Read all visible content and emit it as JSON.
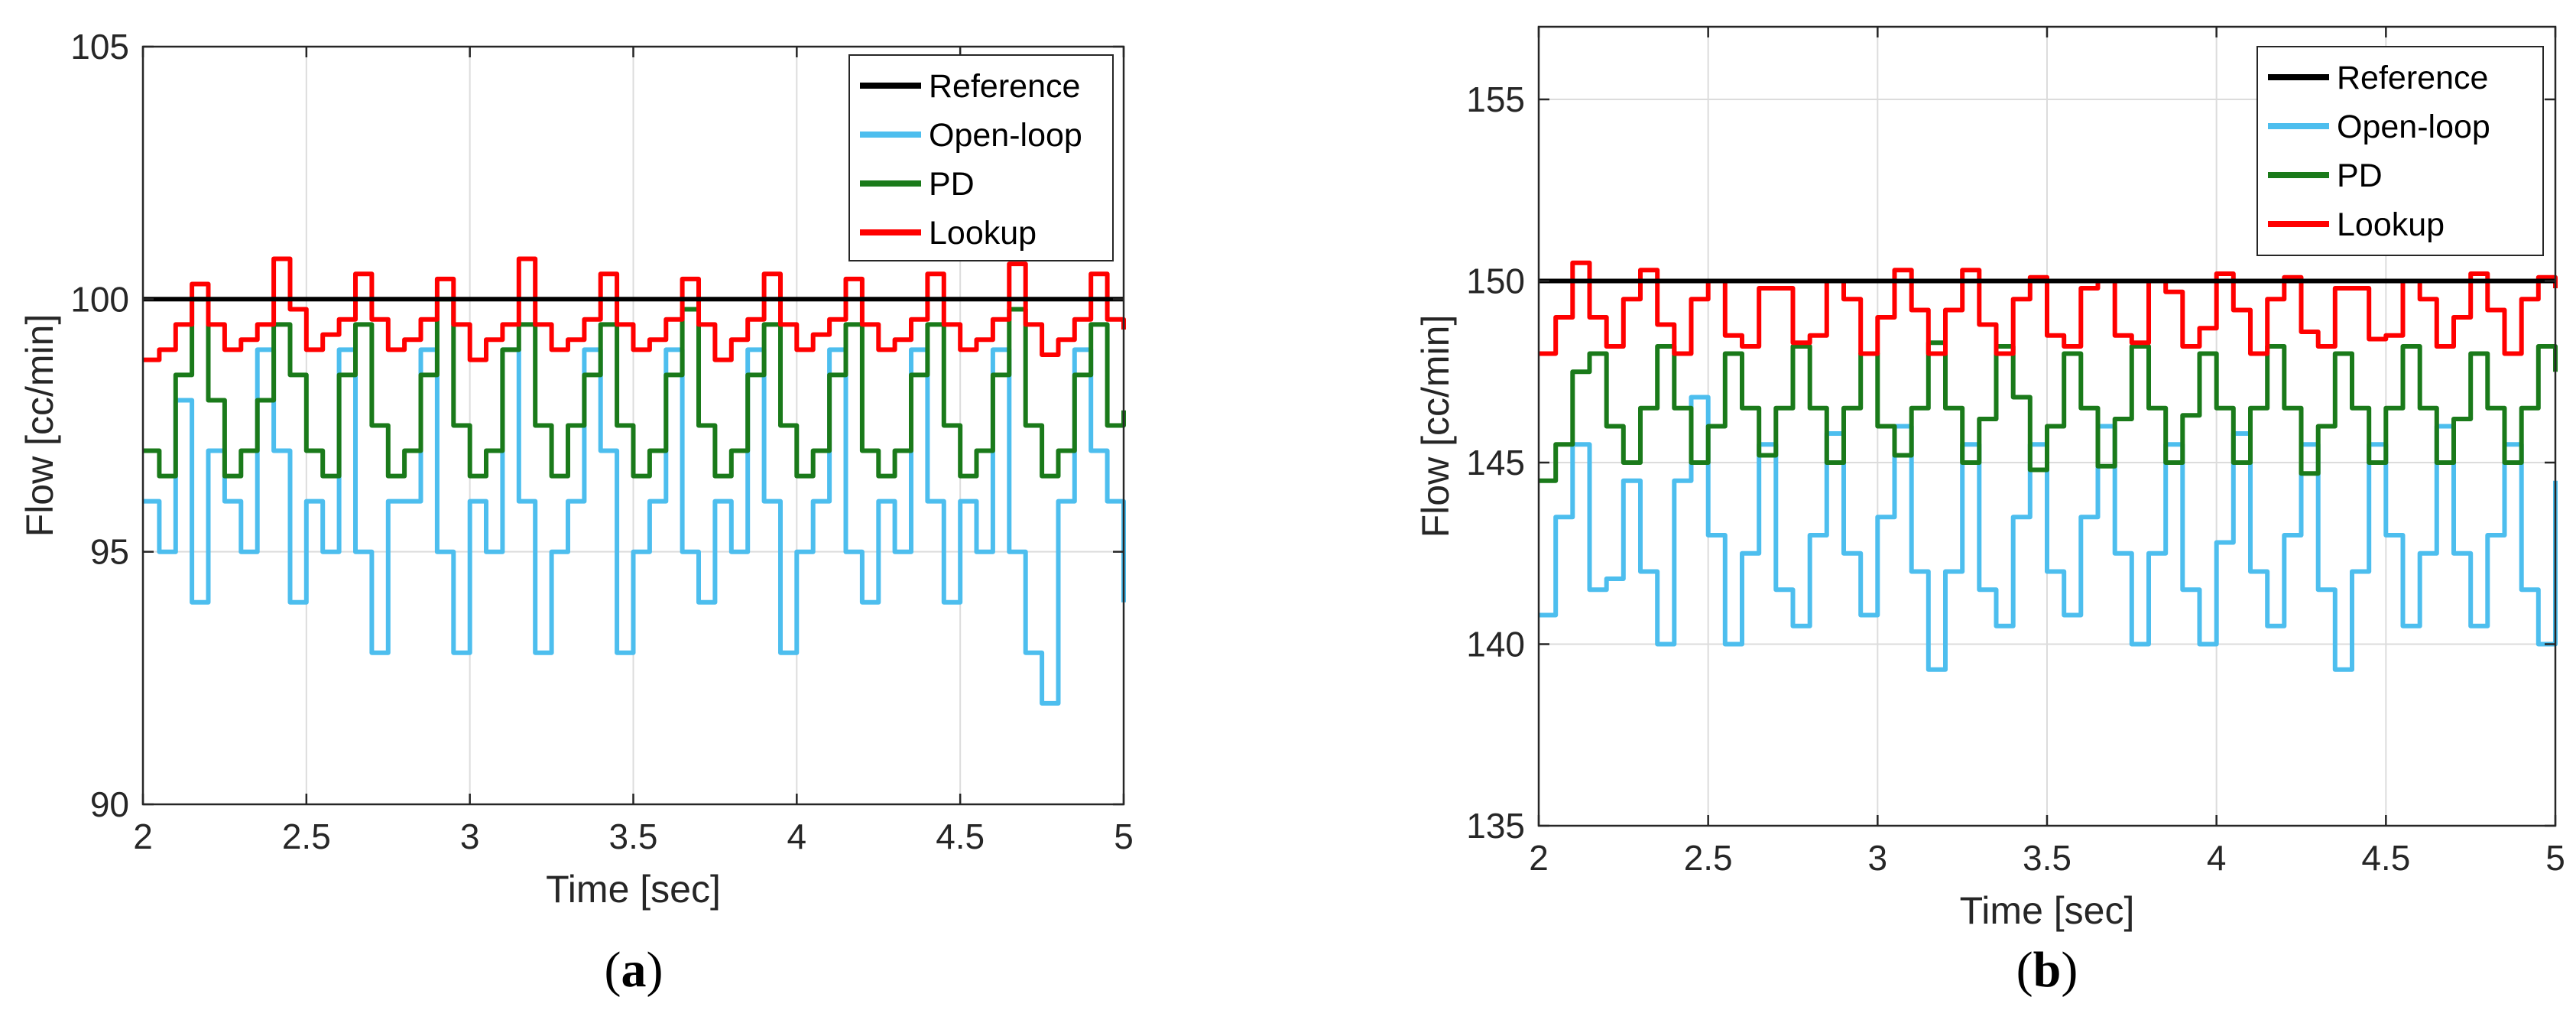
{
  "chart_data": [
    {
      "type": "line",
      "panel_label": "a",
      "xlabel": "Time [sec]",
      "ylabel": "Flow [cc/min]",
      "xlim": [
        2,
        5
      ],
      "ylim": [
        90,
        105
      ],
      "xticks": [
        2,
        2.5,
        3,
        3.5,
        4,
        4.5,
        5
      ],
      "xtick_labels": [
        "2",
        "2.5",
        "3",
        "3.5",
        "4",
        "4.5",
        "5"
      ],
      "yticks": [
        90,
        95,
        100,
        105
      ],
      "ytick_labels": [
        "90",
        "95",
        "100",
        "105"
      ],
      "grid": true,
      "legend_position": "top-right",
      "series": [
        {
          "name": "Reference",
          "color": "#000000",
          "x": [
            2,
            5
          ],
          "y": [
            100,
            100
          ]
        },
        {
          "name": "Open-loop",
          "color": "#4DBEEE",
          "x": [
            2.0,
            2.05,
            2.1,
            2.15,
            2.2,
            2.25,
            2.3,
            2.35,
            2.4,
            2.45,
            2.5,
            2.55,
            2.6,
            2.65,
            2.7,
            2.75,
            2.8,
            2.85,
            2.9,
            2.95,
            3.0,
            3.05,
            3.1,
            3.15,
            3.2,
            3.25,
            3.3,
            3.35,
            3.4,
            3.45,
            3.5,
            3.55,
            3.6,
            3.65,
            3.7,
            3.75,
            3.8,
            3.85,
            3.9,
            3.95,
            4.0,
            4.05,
            4.1,
            4.15,
            4.2,
            4.25,
            4.3,
            4.35,
            4.4,
            4.45,
            4.5,
            4.55,
            4.6,
            4.65,
            4.7,
            4.75,
            4.8,
            4.85,
            4.9,
            4.95,
            5.0
          ],
          "y": [
            96,
            95,
            98,
            94,
            97,
            96,
            95,
            99,
            97,
            94,
            96,
            95,
            99,
            95,
            93,
            96,
            96,
            99,
            95,
            93,
            96,
            95,
            99,
            96,
            93,
            95,
            96,
            99,
            97,
            93,
            95,
            96,
            99,
            95,
            94,
            96,
            95,
            99,
            96,
            93,
            95,
            96,
            99,
            95,
            94,
            96,
            95,
            99,
            96,
            94,
            96,
            95,
            99,
            95,
            93,
            92,
            96,
            99,
            97,
            96,
            94
          ]
        },
        {
          "name": "PD",
          "color": "#1A7A1A",
          "x": [
            2.0,
            2.05,
            2.1,
            2.15,
            2.2,
            2.25,
            2.3,
            2.35,
            2.4,
            2.45,
            2.5,
            2.55,
            2.6,
            2.65,
            2.7,
            2.75,
            2.8,
            2.85,
            2.9,
            2.95,
            3.0,
            3.05,
            3.1,
            3.15,
            3.2,
            3.25,
            3.3,
            3.35,
            3.4,
            3.45,
            3.5,
            3.55,
            3.6,
            3.65,
            3.7,
            3.75,
            3.8,
            3.85,
            3.9,
            3.95,
            4.0,
            4.05,
            4.1,
            4.15,
            4.2,
            4.25,
            4.3,
            4.35,
            4.4,
            4.45,
            4.5,
            4.55,
            4.6,
            4.65,
            4.7,
            4.75,
            4.8,
            4.85,
            4.9,
            4.95,
            5.0
          ],
          "y": [
            97,
            96.5,
            98.5,
            100,
            98,
            96.5,
            97,
            98,
            99.5,
            98.5,
            97,
            96.5,
            98.5,
            99.5,
            97.5,
            96.5,
            97,
            98.5,
            100,
            97.5,
            96.5,
            97,
            99,
            99.5,
            97.5,
            96.5,
            97.5,
            98.5,
            99.5,
            97.5,
            96.5,
            97,
            98.5,
            99.8,
            97.5,
            96.5,
            97,
            98.5,
            99.5,
            97.5,
            96.5,
            97,
            98.5,
            99.5,
            97,
            96.5,
            97,
            98.5,
            99.5,
            97.5,
            96.5,
            97,
            98.5,
            99.8,
            97.5,
            96.5,
            97,
            98.5,
            99.5,
            97.5,
            97.8
          ]
        },
        {
          "name": "Lookup",
          "color": "#FF0000",
          "x": [
            2.0,
            2.05,
            2.1,
            2.15,
            2.2,
            2.25,
            2.3,
            2.35,
            2.4,
            2.45,
            2.5,
            2.55,
            2.6,
            2.65,
            2.7,
            2.75,
            2.8,
            2.85,
            2.9,
            2.95,
            3.0,
            3.05,
            3.1,
            3.15,
            3.2,
            3.25,
            3.3,
            3.35,
            3.4,
            3.45,
            3.5,
            3.55,
            3.6,
            3.65,
            3.7,
            3.75,
            3.8,
            3.85,
            3.9,
            3.95,
            4.0,
            4.05,
            4.1,
            4.15,
            4.2,
            4.25,
            4.3,
            4.35,
            4.4,
            4.45,
            4.5,
            4.55,
            4.6,
            4.65,
            4.7,
            4.75,
            4.8,
            4.85,
            4.9,
            4.95,
            5.0
          ],
          "y": [
            98.8,
            99,
            99.5,
            100.3,
            99.5,
            99,
            99.2,
            99.5,
            100.8,
            99.8,
            99,
            99.3,
            99.6,
            100.5,
            99.6,
            99,
            99.2,
            99.6,
            100.4,
            99.5,
            98.8,
            99.2,
            99.5,
            100.8,
            99.5,
            99,
            99.2,
            99.6,
            100.5,
            99.5,
            99,
            99.2,
            99.6,
            100.4,
            99.5,
            98.8,
            99.2,
            99.6,
            100.5,
            99.5,
            99,
            99.3,
            99.6,
            100.4,
            99.5,
            99,
            99.2,
            99.6,
            100.5,
            99.5,
            99,
            99.2,
            99.6,
            100.7,
            99.5,
            98.9,
            99.2,
            99.6,
            100.5,
            99.6,
            99.4
          ]
        }
      ]
    },
    {
      "type": "line",
      "panel_label": "b",
      "xlabel": "Time [sec]",
      "ylabel": "Flow [cc/min]",
      "xlim": [
        2,
        5
      ],
      "ylim": [
        135,
        157
      ],
      "xticks": [
        2,
        2.5,
        3,
        3.5,
        4,
        4.5,
        5
      ],
      "xtick_labels": [
        "2",
        "2.5",
        "3",
        "3.5",
        "4",
        "4.5",
        "5"
      ],
      "yticks": [
        135,
        140,
        145,
        150,
        155
      ],
      "ytick_labels": [
        "135",
        "140",
        "145",
        "150",
        "155"
      ],
      "grid": true,
      "legend_position": "top-right",
      "series": [
        {
          "name": "Reference",
          "color": "#000000",
          "x": [
            2,
            5
          ],
          "y": [
            150,
            150
          ]
        },
        {
          "name": "Open-loop",
          "color": "#4DBEEE",
          "x": [
            2.0,
            2.05,
            2.1,
            2.15,
            2.2,
            2.25,
            2.3,
            2.35,
            2.4,
            2.45,
            2.5,
            2.55,
            2.6,
            2.65,
            2.7,
            2.75,
            2.8,
            2.85,
            2.9,
            2.95,
            3.0,
            3.05,
            3.1,
            3.15,
            3.2,
            3.25,
            3.3,
            3.35,
            3.4,
            3.45,
            3.5,
            3.55,
            3.6,
            3.65,
            3.7,
            3.75,
            3.8,
            3.85,
            3.9,
            3.95,
            4.0,
            4.05,
            4.1,
            4.15,
            4.2,
            4.25,
            4.3,
            4.35,
            4.4,
            4.45,
            4.5,
            4.55,
            4.6,
            4.65,
            4.7,
            4.75,
            4.8,
            4.85,
            4.9,
            4.95,
            5.0
          ],
          "y": [
            140.8,
            143.5,
            145.5,
            141.5,
            141.8,
            144.5,
            142,
            140,
            144.5,
            146.8,
            143,
            140,
            142.5,
            145.5,
            141.5,
            140.5,
            143,
            145.8,
            142.5,
            140.8,
            143.5,
            146,
            142,
            139.3,
            142,
            145.5,
            141.5,
            140.5,
            143.5,
            145.5,
            142,
            140.8,
            143.5,
            146,
            142.5,
            140,
            142.5,
            145.5,
            141.5,
            140,
            142.8,
            145.8,
            142,
            140.5,
            143,
            145.5,
            141.5,
            139.3,
            142,
            145.5,
            143,
            140.5,
            142.5,
            146,
            142.5,
            140.5,
            143,
            145.5,
            141.5,
            140,
            144.5
          ]
        },
        {
          "name": "PD",
          "color": "#1A7A1A",
          "x": [
            2.0,
            2.05,
            2.1,
            2.15,
            2.2,
            2.25,
            2.3,
            2.35,
            2.4,
            2.45,
            2.5,
            2.55,
            2.6,
            2.65,
            2.7,
            2.75,
            2.8,
            2.85,
            2.9,
            2.95,
            3.0,
            3.05,
            3.1,
            3.15,
            3.2,
            3.25,
            3.3,
            3.35,
            3.4,
            3.45,
            3.5,
            3.55,
            3.6,
            3.65,
            3.7,
            3.75,
            3.8,
            3.85,
            3.9,
            3.95,
            4.0,
            4.05,
            4.1,
            4.15,
            4.2,
            4.25,
            4.3,
            4.35,
            4.4,
            4.45,
            4.5,
            4.55,
            4.6,
            4.65,
            4.7,
            4.75,
            4.8,
            4.85,
            4.9,
            4.95,
            5.0
          ],
          "y": [
            144.5,
            145.5,
            147.5,
            148,
            146,
            145,
            146.5,
            148.2,
            146.5,
            145,
            146,
            148,
            146.5,
            145.2,
            146.5,
            148.2,
            146.5,
            145,
            146.5,
            148,
            146,
            145.2,
            146.5,
            148.3,
            146.5,
            145,
            146.2,
            148.2,
            146.8,
            144.8,
            146,
            148,
            146.5,
            144.9,
            146.2,
            148.2,
            146.5,
            145,
            146.3,
            148,
            146.5,
            145,
            146.5,
            148.2,
            146.5,
            144.7,
            146,
            148,
            146.5,
            145,
            146.5,
            148.2,
            146.5,
            145,
            146.2,
            148,
            146.5,
            145,
            146.5,
            148.2,
            147.5
          ]
        },
        {
          "name": "Lookup",
          "color": "#FF0000",
          "x": [
            2.0,
            2.05,
            2.1,
            2.15,
            2.2,
            2.25,
            2.3,
            2.35,
            2.4,
            2.45,
            2.5,
            2.55,
            2.6,
            2.65,
            2.7,
            2.75,
            2.8,
            2.85,
            2.9,
            2.95,
            3.0,
            3.05,
            3.1,
            3.15,
            3.2,
            3.25,
            3.3,
            3.35,
            3.4,
            3.45,
            3.5,
            3.55,
            3.6,
            3.65,
            3.7,
            3.75,
            3.8,
            3.85,
            3.9,
            3.95,
            4.0,
            4.05,
            4.1,
            4.15,
            4.2,
            4.25,
            4.3,
            4.35,
            4.4,
            4.45,
            4.5,
            4.55,
            4.6,
            4.65,
            4.7,
            4.75,
            4.8,
            4.85,
            4.9,
            4.95,
            5.0
          ],
          "y": [
            148,
            149,
            150.5,
            149,
            148.2,
            149.5,
            150.3,
            148.8,
            148,
            149.5,
            150,
            148.5,
            148.2,
            149.8,
            149.8,
            148.3,
            148.5,
            150,
            149.5,
            148,
            149,
            150.3,
            149.2,
            148,
            149.2,
            150.3,
            148.8,
            148,
            149.5,
            150.1,
            148.5,
            148.2,
            149.8,
            150,
            148.5,
            148.3,
            150,
            149.7,
            148.2,
            148.7,
            150.2,
            149.2,
            148,
            149.5,
            150.1,
            148.6,
            148.2,
            149.8,
            149.8,
            148.4,
            148.5,
            150,
            149.5,
            148.2,
            149,
            150.2,
            149.2,
            148,
            149.5,
            150.1,
            149.8
          ]
        }
      ]
    }
  ]
}
